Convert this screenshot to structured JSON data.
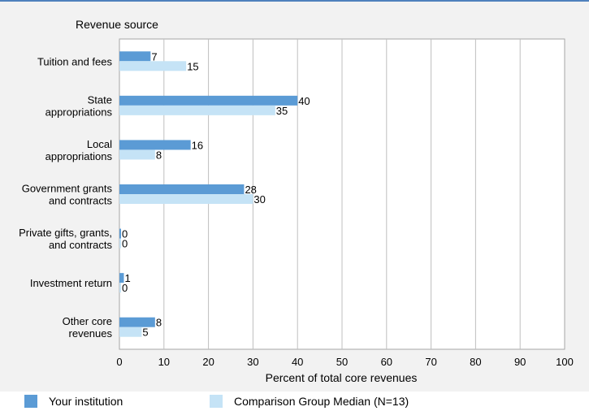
{
  "chart_data": {
    "type": "bar",
    "orientation": "horizontal",
    "title": "Revenue source",
    "xlabel": "Percent of total core revenues",
    "xlim": [
      0,
      100
    ],
    "xticks": [
      0,
      10,
      20,
      30,
      40,
      50,
      60,
      70,
      80,
      90,
      100
    ],
    "grid": true,
    "legend_position": "bottom",
    "categories": [
      [
        "Tuition and fees"
      ],
      [
        "State",
        "appropriations"
      ],
      [
        "Local",
        "appropriations"
      ],
      [
        "Government grants",
        "and contracts"
      ],
      [
        "Private gifts, grants,",
        "and contracts"
      ],
      [
        "Investment return"
      ],
      [
        "Other core",
        "revenues"
      ]
    ],
    "series": [
      {
        "name": "Your institution",
        "color": "#5b9bd5",
        "values": [
          7,
          40,
          16,
          28,
          0,
          1,
          8
        ]
      },
      {
        "name": "Comparison Group Median (N=13)",
        "color": "#c5e3f6",
        "values": [
          15,
          35,
          8,
          30,
          0,
          0,
          5
        ]
      }
    ]
  }
}
